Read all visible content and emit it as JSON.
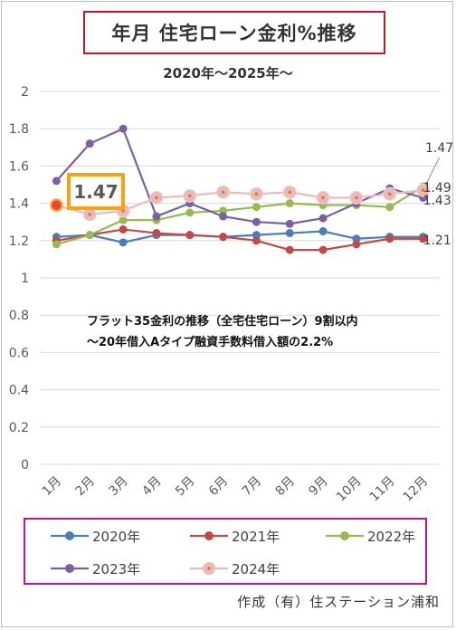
{
  "header": {
    "title": "年月 住宅ローン金利%推移",
    "subtitle": "2020年～2025年～"
  },
  "chart_data": {
    "type": "line",
    "categories": [
      "1月",
      "2月",
      "3月",
      "4月",
      "5月",
      "6月",
      "7月",
      "8月",
      "9月",
      "10月",
      "11月",
      "12月"
    ],
    "ylim": [
      0,
      2
    ],
    "yticks": [
      "0",
      "0.2",
      "0.4",
      "0.6",
      "0.8",
      "1",
      "1.2",
      "1.4",
      "1.6",
      "1.8",
      "2"
    ],
    "grid": true,
    "legend_position": "bottom",
    "series": [
      {
        "name": "2020年",
        "color": "#4a7ebb",
        "values": [
          1.22,
          1.23,
          1.19,
          1.23,
          1.23,
          1.22,
          1.23,
          1.24,
          1.25,
          1.21,
          1.22,
          1.22
        ]
      },
      {
        "name": "2021年",
        "color": "#be4b48",
        "values": [
          1.2,
          1.23,
          1.26,
          1.24,
          1.23,
          1.22,
          1.2,
          1.15,
          1.15,
          1.18,
          1.21,
          1.21
        ]
      },
      {
        "name": "2022年",
        "color": "#98b954",
        "values": [
          1.18,
          1.23,
          1.31,
          1.31,
          1.35,
          1.36,
          1.38,
          1.4,
          1.39,
          1.39,
          1.38,
          1.49
        ]
      },
      {
        "name": "2023年",
        "color": "#7d60a0",
        "values": [
          1.52,
          1.72,
          1.8,
          1.33,
          1.4,
          1.33,
          1.3,
          1.29,
          1.32,
          1.4,
          1.48,
          1.43
        ]
      },
      {
        "name": "2024年",
        "color": "#eab9b9",
        "values": [
          1.39,
          1.34,
          1.36,
          1.43,
          1.44,
          1.46,
          1.45,
          1.46,
          1.43,
          1.43,
          1.45,
          1.47
        ]
      }
    ],
    "data_labels": [
      "1.47",
      "1.49",
      "1.43",
      "1.21"
    ],
    "highlight_label": "1.47",
    "annotation": [
      "フラット35金利の推移（全宅住宅ローン）9割以内",
      "～20年借入Aタイプ融資手数料借入額の2.2%"
    ]
  },
  "footer": {
    "credit": "作成（有）住ステーション浦和"
  }
}
